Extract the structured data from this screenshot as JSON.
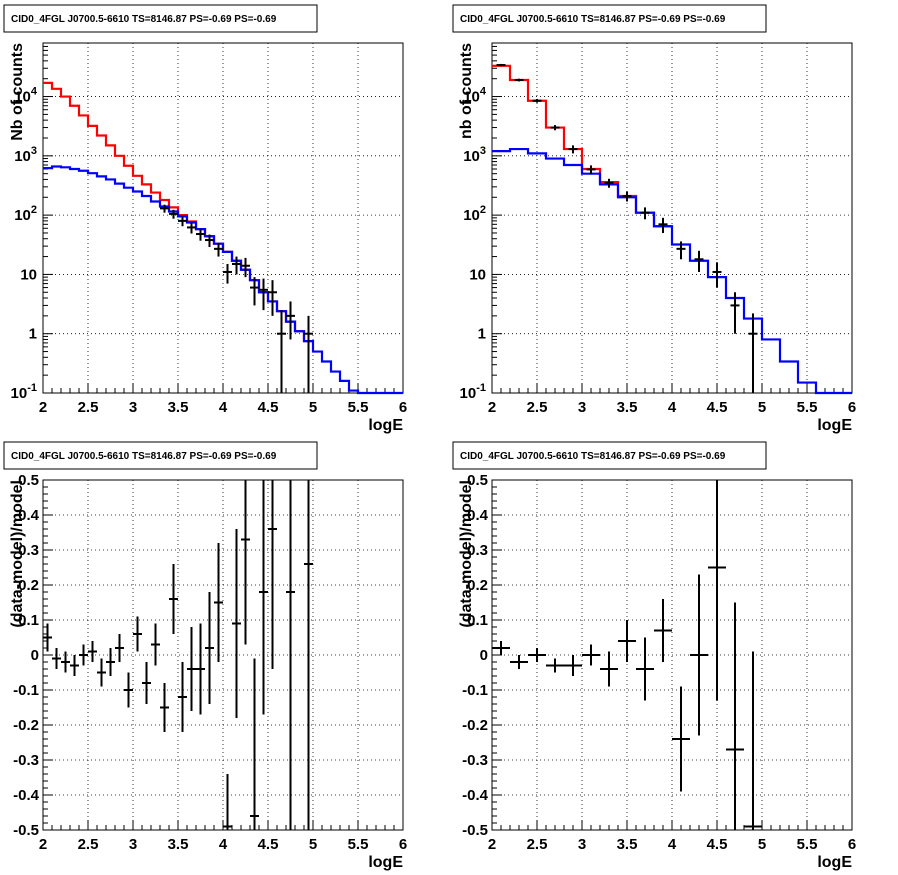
{
  "chart_data": [
    {
      "type": "line",
      "panel": "top-left",
      "title": "CID0_4FGL J0700.5-6610 TS=8146.87 PS=-0.69 PS=-0.69",
      "xlabel": "logE",
      "ylabel": "Nb of counts",
      "xlim": [
        2,
        6
      ],
      "ylim": [
        0.1,
        80000
      ],
      "yscale": "log",
      "grid": true,
      "xticks": [
        "2",
        "2.5",
        "3",
        "3.5",
        "4",
        "4.5",
        "5",
        "5.5",
        "6"
      ],
      "yticks": [
        {
          "value": 0.1,
          "label": "10-1",
          "sup": true
        },
        {
          "value": 1,
          "label": "1"
        },
        {
          "value": 10,
          "label": "10"
        },
        {
          "value": 100,
          "label": "102",
          "sup": true
        },
        {
          "value": 1000,
          "label": "103",
          "sup": true
        },
        {
          "value": 10000,
          "label": "104",
          "sup": true
        }
      ],
      "bin_edges": [
        2.0,
        2.1,
        2.2,
        2.3,
        2.4,
        2.5,
        2.6,
        2.7,
        2.8,
        2.9,
        3.0,
        3.1,
        3.2,
        3.3,
        3.4,
        3.5,
        3.6,
        3.7,
        3.8,
        3.9,
        4.0,
        4.1,
        4.2,
        4.3,
        4.4,
        4.5,
        4.6,
        4.7,
        4.8,
        4.9,
        5.0,
        5.1,
        5.2,
        5.3,
        5.4,
        5.5,
        5.6,
        5.7,
        5.8,
        5.9,
        6.0
      ],
      "series": [
        {
          "name": "",
          "style": "step",
          "color": "#ff0000",
          "values": [
            17000,
            13500,
            10000,
            7000,
            4800,
            3200,
            2200,
            1500,
            1000,
            680,
            460,
            330,
            240,
            180,
            135,
            100,
            78,
            58,
            44,
            33,
            24,
            17,
            12,
            8,
            5,
            3.5,
            2.4,
            1.6,
            1.1,
            0.75,
            null,
            null,
            null,
            null,
            null,
            null,
            null,
            null,
            null,
            null
          ]
        },
        {
          "name": "",
          "style": "step",
          "color": "#0000ff",
          "values": [
            620,
            660,
            640,
            600,
            560,
            510,
            450,
            400,
            340,
            290,
            250,
            210,
            170,
            140,
            115,
            95,
            75,
            58,
            44,
            33,
            24,
            17,
            12,
            8,
            5,
            3.5,
            2.4,
            1.6,
            1.1,
            0.75,
            0.5,
            0.34,
            0.23,
            0.16,
            0.11,
            0.1,
            0.1,
            0.1,
            0.1,
            0.1
          ]
        },
        {
          "name": "",
          "style": "errorbar",
          "color": "#000000",
          "x": [
            3.35,
            3.45,
            3.55,
            3.65,
            3.75,
            3.85,
            3.95,
            4.05,
            4.15,
            4.25,
            4.35,
            4.45,
            4.55,
            4.65,
            4.75,
            4.95
          ],
          "values": [
            130,
            105,
            80,
            62,
            48,
            38,
            27,
            11,
            15,
            14,
            6,
            5.5,
            5,
            1,
            2,
            1
          ],
          "err_low": [
            20,
            18,
            15,
            13,
            11,
            9,
            7,
            4,
            5,
            5,
            3,
            3,
            3,
            0.9,
            1.2,
            0.9
          ],
          "err_high": [
            20,
            18,
            15,
            13,
            11,
            9,
            7,
            4,
            5,
            5,
            3,
            3,
            3,
            1.5,
            1.5,
            1.0
          ]
        }
      ]
    },
    {
      "type": "line",
      "panel": "top-right",
      "title": "CID0_4FGL J0700.5-6610 TS=8146.87 PS=-0.69 PS=-0.69",
      "xlabel": "logE",
      "ylabel": "nb of counts",
      "xlim": [
        2,
        6
      ],
      "ylim": [
        0.1,
        80000
      ],
      "yscale": "log",
      "grid": true,
      "xticks": [
        "2",
        "2.5",
        "3",
        "3.5",
        "4",
        "4.5",
        "5",
        "5.5",
        "6"
      ],
      "yticks": [
        {
          "value": 0.1,
          "label": "10-1",
          "sup": true
        },
        {
          "value": 1,
          "label": "1"
        },
        {
          "value": 10,
          "label": "10"
        },
        {
          "value": 100,
          "label": "102",
          "sup": true
        },
        {
          "value": 1000,
          "label": "103",
          "sup": true
        },
        {
          "value": 10000,
          "label": "104",
          "sup": true
        }
      ],
      "bin_edges": [
        2.0,
        2.2,
        2.4,
        2.6,
        2.8,
        3.0,
        3.2,
        3.4,
        3.6,
        3.8,
        4.0,
        4.2,
        4.4,
        4.6,
        4.8,
        5.0,
        5.2,
        5.4,
        5.6,
        5.8,
        6.0
      ],
      "series": [
        {
          "name": "",
          "style": "step",
          "color": "#ff0000",
          "values": [
            33000,
            19000,
            8500,
            3000,
            1300,
            600,
            360,
            210,
            110,
            65,
            null,
            null,
            null,
            null,
            null,
            null,
            null,
            null,
            null,
            null
          ]
        },
        {
          "name": "",
          "style": "step",
          "color": "#0000ff",
          "values": [
            1200,
            1300,
            1100,
            900,
            700,
            500,
            330,
            200,
            110,
            65,
            32,
            17,
            9,
            4,
            1.8,
            0.8,
            0.34,
            0.15,
            0.1,
            0.1
          ]
        },
        {
          "name": "",
          "style": "errorbar",
          "color": "#000000",
          "x": [
            2.1,
            2.3,
            2.5,
            2.7,
            2.9,
            3.1,
            3.3,
            3.5,
            3.7,
            3.9,
            4.1,
            4.3,
            4.5,
            4.7,
            4.9
          ],
          "values": [
            34000,
            19000,
            8500,
            3000,
            1300,
            590,
            350,
            210,
            110,
            70,
            27,
            18,
            11,
            3,
            1
          ],
          "err_low": [
            1500,
            1000,
            600,
            300,
            200,
            100,
            60,
            40,
            25,
            20,
            9,
            7,
            5,
            2,
            0.9
          ],
          "err_high": [
            1500,
            1000,
            600,
            300,
            200,
            100,
            60,
            40,
            25,
            20,
            9,
            7,
            5,
            2,
            1.2
          ]
        }
      ]
    },
    {
      "type": "scatter",
      "panel": "bottom-left",
      "title": "CID0_4FGL J0700.5-6610 TS=8146.87 PS=-0.69 PS=-0.69",
      "xlabel": "logE",
      "ylabel": "(data-model)/model",
      "xlim": [
        2,
        6
      ],
      "ylim": [
        -0.5,
        0.5
      ],
      "grid": true,
      "xticks": [
        "2",
        "2.5",
        "3",
        "3.5",
        "4",
        "4.5",
        "5",
        "5.5",
        "6"
      ],
      "yticks": [
        "-0.5",
        "-0.4",
        "-0.3",
        "-0.2",
        "-0.1",
        "0",
        "0.1",
        "0.2",
        "0.3",
        "0.4",
        "0.5"
      ],
      "series": [
        {
          "name": "",
          "style": "errorbar",
          "color": "#000000",
          "xerr": 0.05,
          "x": [
            2.05,
            2.15,
            2.25,
            2.35,
            2.45,
            2.55,
            2.65,
            2.75,
            2.85,
            2.95,
            3.05,
            3.15,
            3.25,
            3.35,
            3.45,
            3.55,
            3.65,
            3.75,
            3.85,
            3.95,
            4.05,
            4.15,
            4.25,
            4.35,
            4.45,
            4.55,
            4.75,
            4.95
          ],
          "values": [
            0.05,
            -0.01,
            -0.02,
            -0.03,
            0.0,
            0.01,
            -0.05,
            -0.02,
            0.02,
            -0.1,
            0.06,
            -0.08,
            0.03,
            -0.15,
            0.16,
            -0.12,
            -0.04,
            -0.04,
            0.02,
            0.15,
            -0.49,
            0.09,
            0.33,
            -0.46,
            0.18,
            0.36,
            0.18,
            0.26
          ],
          "err": [
            0.04,
            0.03,
            0.03,
            0.03,
            0.03,
            0.03,
            0.04,
            0.04,
            0.04,
            0.05,
            0.05,
            0.06,
            0.06,
            0.07,
            0.1,
            0.1,
            0.12,
            0.13,
            0.16,
            0.17,
            0.15,
            0.27,
            0.3,
            0.45,
            0.35,
            0.4,
            0.7,
            0.85
          ]
        }
      ]
    },
    {
      "type": "scatter",
      "panel": "bottom-right",
      "title": "CID0_4FGL J0700.5-6610 TS=8146.87 PS=-0.69 PS=-0.69",
      "xlabel": "logE",
      "ylabel": "(data-model)/model",
      "xlim": [
        2,
        6
      ],
      "ylim": [
        -0.5,
        0.5
      ],
      "grid": true,
      "xticks": [
        "2",
        "2.5",
        "3",
        "3.5",
        "4",
        "4.5",
        "5",
        "5.5",
        "6"
      ],
      "yticks": [
        "-0.5",
        "-0.4",
        "-0.3",
        "-0.2",
        "-0.1",
        "0",
        "0.1",
        "0.2",
        "0.3",
        "0.4",
        "0.5"
      ],
      "series": [
        {
          "name": "",
          "style": "errorbar",
          "color": "#000000",
          "xerr": 0.1,
          "x": [
            2.1,
            2.3,
            2.5,
            2.7,
            2.9,
            3.1,
            3.3,
            3.5,
            3.7,
            3.9,
            4.1,
            4.3,
            4.5,
            4.7,
            4.9
          ],
          "values": [
            0.02,
            -0.02,
            0.0,
            -0.03,
            -0.03,
            0.0,
            -0.04,
            0.04,
            -0.04,
            0.07,
            -0.24,
            0.0,
            0.25,
            -0.27,
            -0.49
          ],
          "err": [
            0.02,
            0.02,
            0.02,
            0.02,
            0.03,
            0.03,
            0.05,
            0.06,
            0.09,
            0.09,
            0.15,
            0.23,
            0.38,
            0.42,
            0.5
          ]
        }
      ]
    }
  ]
}
